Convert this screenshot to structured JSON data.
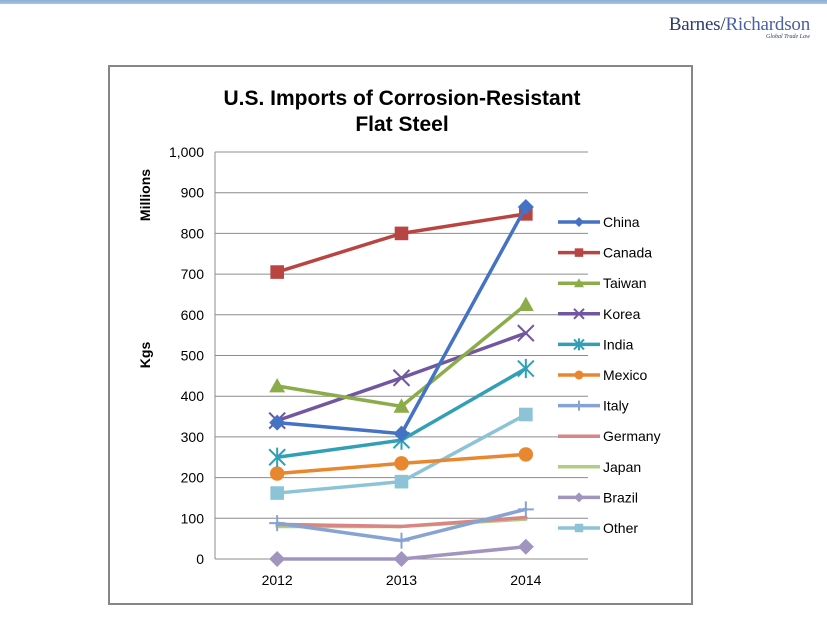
{
  "logo": {
    "main_left": "Barnes/",
    "main_right": "Richardson",
    "tagline": "Global Trade Law"
  },
  "chart_data": {
    "type": "line",
    "title_lines": [
      "U.S. Imports of Corrosion-Resistant",
      "Flat Steel"
    ],
    "xlabel": "",
    "ylabel": "Kgs",
    "yunit_label": "Millions",
    "categories": [
      "2012",
      "2013",
      "2014"
    ],
    "ylim": [
      0,
      1000
    ],
    "yticks": [
      0,
      100,
      200,
      300,
      400,
      500,
      600,
      700,
      800,
      900,
      1000
    ],
    "ytick_labels": [
      "0",
      "100",
      "200",
      "300",
      "400",
      "500",
      "600",
      "700",
      "800",
      "900",
      "1,000"
    ],
    "grid": true,
    "legend_position": "right",
    "series": [
      {
        "name": "China",
        "color": "#4472c4",
        "marker": "diamond",
        "values": [
          335,
          308,
          865
        ]
      },
      {
        "name": "Canada",
        "color": "#b84542",
        "marker": "square",
        "values": [
          705,
          800,
          848
        ]
      },
      {
        "name": "Taiwan",
        "color": "#8cac4a",
        "marker": "triangle",
        "values": [
          425,
          375,
          625
        ]
      },
      {
        "name": "Korea",
        "color": "#7356a0",
        "marker": "x",
        "values": [
          340,
          445,
          555
        ]
      },
      {
        "name": "India",
        "color": "#31a0b6",
        "marker": "star",
        "values": [
          250,
          292,
          468
        ]
      },
      {
        "name": "Mexico",
        "color": "#e9872f",
        "marker": "circle",
        "values": [
          210,
          235,
          257
        ]
      },
      {
        "name": "Italy",
        "color": "#86a3d4",
        "marker": "plus",
        "values": [
          88,
          45,
          122
        ]
      },
      {
        "name": "Germany",
        "color": "#d98584",
        "marker": "none",
        "values": [
          85,
          80,
          102
        ]
      },
      {
        "name": "Japan",
        "color": "#b1cc84",
        "marker": "none",
        "values": [
          80,
          80,
          98
        ]
      },
      {
        "name": "Brazil",
        "color": "#a195c0",
        "marker": "diamond",
        "values": [
          0,
          0,
          30
        ]
      },
      {
        "name": "Other",
        "color": "#8dc3d6",
        "marker": "square",
        "values": [
          162,
          190,
          355
        ]
      }
    ]
  }
}
